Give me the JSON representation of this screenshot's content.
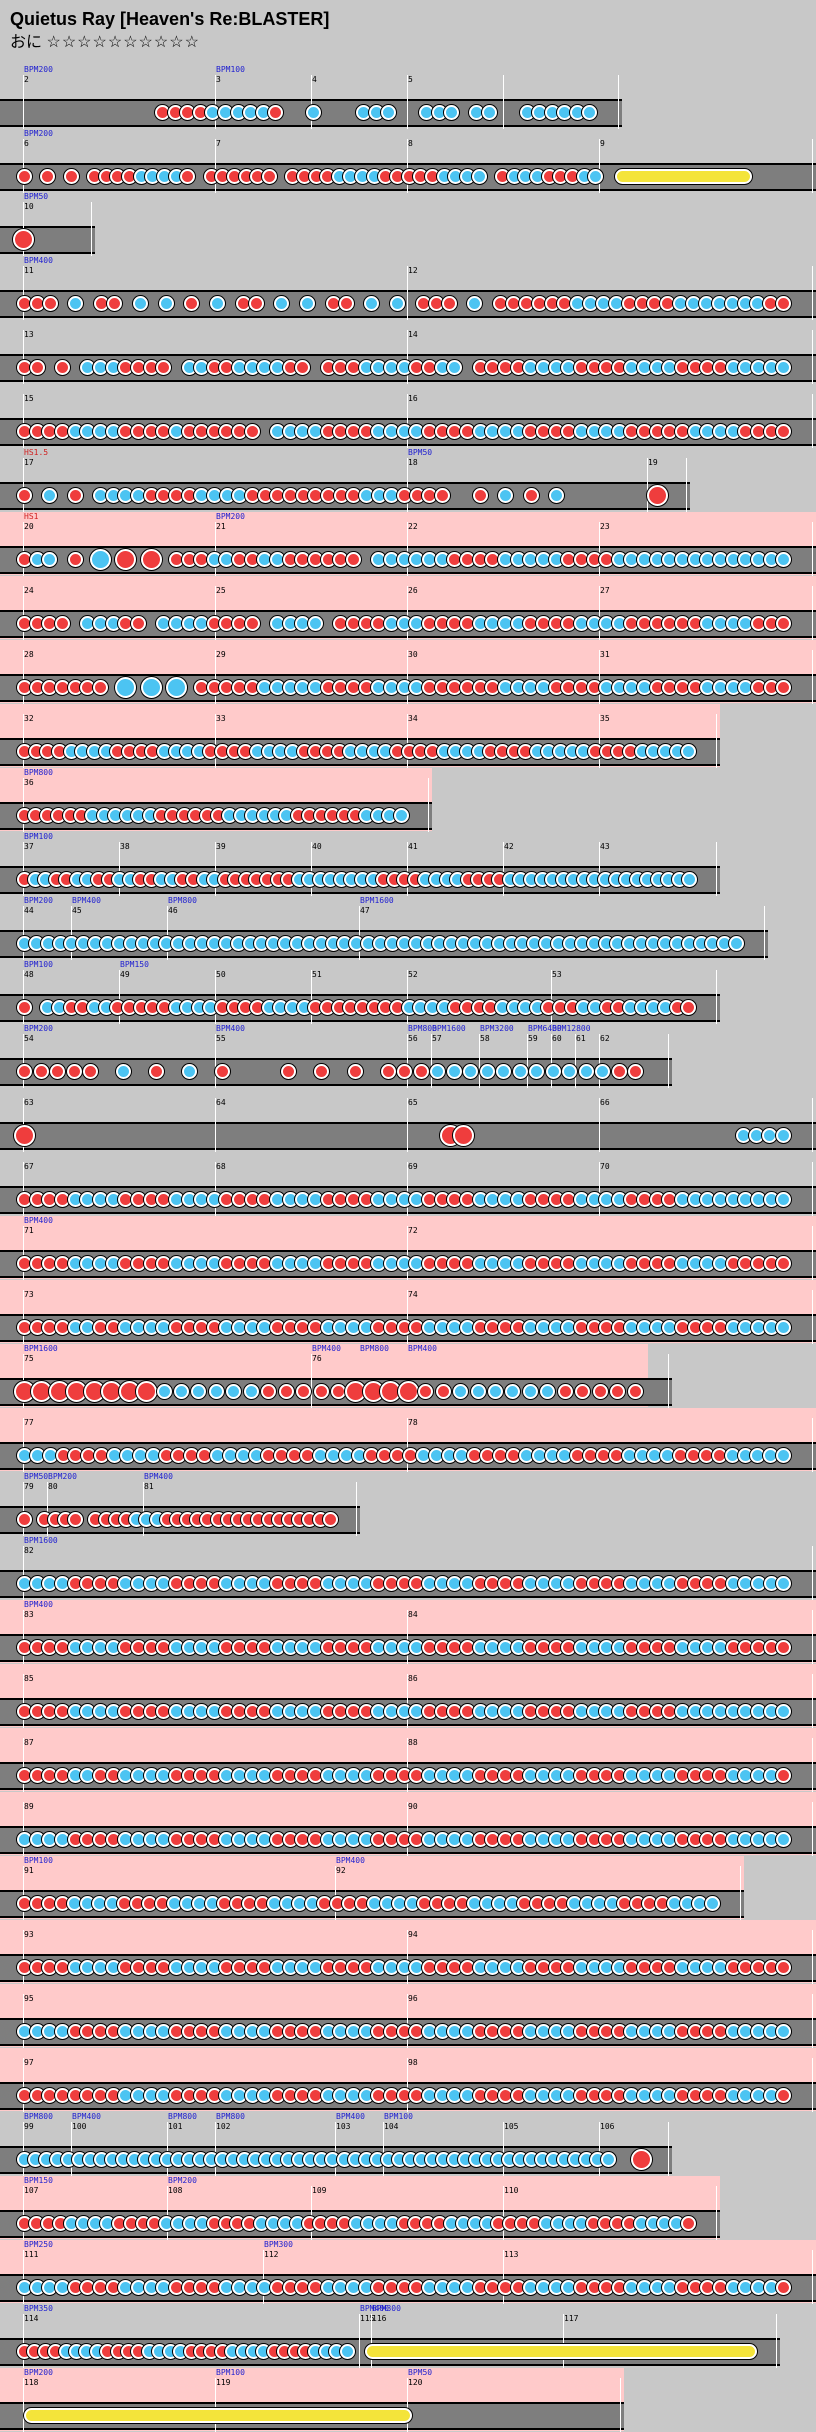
{
  "song": {
    "title": "Quietus Ray [Heaven's Re:BLASTER]",
    "course": "おに",
    "stars": "☆☆☆☆☆☆☆☆☆☆"
  },
  "colors": {
    "background": "#c8c8c8",
    "lane": "#7e7e7e",
    "gogo": "#ffcaca",
    "don": "#ef3d3d",
    "ka": "#4cc4f2",
    "roll": "#f4e43a",
    "bpm_text": "#2020d0"
  },
  "rows": [
    {
      "bars": [
        "2",
        "3",
        "4",
        "5"
      ],
      "bpm": [
        "BPM200",
        "BPM100"
      ],
      "notes": "-----------rrrrbbbbbr--b---bbb--bbb-bb--bbbbbb"
    },
    {
      "bars": [
        "6",
        "7",
        "8",
        "9"
      ],
      "bpm": [
        "BPM200"
      ],
      "notes": "r-r-r-rrrrbbbbr-rrrrrr-rrrrbbbbrrrrrbbbb-rbbbrrrbb",
      "roll": true
    },
    {
      "bars": [
        "10"
      ],
      "bpm": [
        "BPM50"
      ],
      "notes": "R"
    },
    {
      "bars": [
        "11",
        "12"
      ],
      "bpm": [
        "BPM400"
      ],
      "notes": "rrr-b-rr-b-b-r-b-rr-b-b-rr-b-b-rrr-b-rrrrrrbbbbrrrrbbbbbbbrr"
    },
    {
      "bars": [
        "13",
        "14"
      ],
      "bpm": [],
      "notes": "rr-r-bbbrrrr-bbrrbbbbrr-rrrbbbbrrbb-rrrrbbbbrrrrbbbbrrrrbbbbb"
    },
    {
      "bars": [
        "15",
        "16"
      ],
      "bpm": [],
      "notes": "rrrrbbbbrrrrbrrrrrr-bbbbrrrrbbbbrrrrbbbbrrrrbbbbrrrrrbbbbrrrr"
    },
    {
      "bars": [
        "17",
        "18",
        "19"
      ],
      "bpm": [
        "HS1.5",
        "BPM50"
      ],
      "notes": "r-b-r-bbbbrrrrbbbbrrrrrrrrrbbbrrrr--r-b-r-b-------R"
    },
    {
      "bars": [
        "20",
        "21",
        "22",
        "23"
      ],
      "bpm": [
        "HS1",
        "BPM200"
      ],
      "notes": "rbb-r-B-R-R-rrrbbrrbbrrrrrr-bbbbbbrrrrbbbbbrrrrbbbbbbbbbbbbbb"
    },
    {
      "bars": [
        "24",
        "25",
        "26",
        "27"
      ],
      "bpm": [],
      "notes": "rrrr-bbbrr-bbbbrrrr-bbbb-rrrrbbbrrrrbbbbrrrrbbbbrrrrrrbbbbrrr"
    },
    {
      "bars": [
        "28",
        "29",
        "30",
        "31"
      ],
      "bpm": [],
      "notes": "rrrrrrr-B-B-B-rrrrrbbbbbrrrrbbbbrrrrrrbbbbrrrrbbbbrrrrbbbbrrr"
    },
    {
      "bars": [
        "32",
        "33",
        "34",
        "35"
      ],
      "bpm": [],
      "notes": "rrrrbbbbrrrrbbbbrrrrbbbbrrrrbbbbrrrrbbbbrrrrbbbbbrrrrbbbbb"
    },
    {
      "bars": [
        "36"
      ],
      "bpm": [
        "BPM800"
      ],
      "notes": "rrrrrrbbbbbbrrrrrrbbbbbbrrrrrrbbbb"
    },
    {
      "bars": [
        "37",
        "38",
        "39",
        "40",
        "41",
        "42",
        "43"
      ],
      "bpm": [
        "BPM100"
      ],
      "notes": "rbbrrbbrrbbrrbbrrbbrrrrrrrbbbbbbbbrrrrbbbbrrrrbbbbbbbbbbbbbbbbbb"
    },
    {
      "bars": [
        "44",
        "45",
        "46",
        "47"
      ],
      "bpm": [
        "BPM200",
        "BPM400",
        "BPM800",
        "BPM1600"
      ],
      "notes": "bbbbbbbbbbbbbbbbbbbbbbbbbbbbbbbbbbbbbbbbbbbbbbbbbbbbbbbbbbbbb"
    },
    {
      "bars": [
        "48",
        "49",
        "50",
        "51",
        "52",
        "53"
      ],
      "bpm": [
        "BPM100",
        "BPM150"
      ],
      "notes": "r-bbrrbbrrrrrbbbbrrrrbbbbrrrrrrrrbbbbrrrrbbbbrrrbbrrbbbbrr"
    },
    {
      "bars": [
        "54",
        "55",
        "56",
        "57",
        "58",
        "59",
        "60",
        "61",
        "62"
      ],
      "bpm": [
        "BPM200",
        "BPM400",
        "BPM800",
        "BPM1600",
        "BPM3200",
        "BPM6400",
        "BPM12800"
      ],
      "notes": "rrrrr-b-r-b-r---r-r-r-rrrbbbbbbbbbbbrr"
    },
    {
      "bars": [
        "63",
        "64",
        "65",
        "66"
      ],
      "bpm": [],
      "notes": "R-------------------------------RR--------------------bbbb"
    },
    {
      "bars": [
        "67",
        "68",
        "69",
        "70"
      ],
      "bpm": [],
      "notes": "rrrrbbbbrrrrbbbbrrrrbbbbrrrrbbbbrrrrbbbbrrrrbbbbrrrrbbbbbbbbb"
    },
    {
      "bars": [
        "71",
        "72"
      ],
      "bpm": [
        "BPM400"
      ],
      "notes": "rrrrbbbbrrrrbbbbrrrrbbbbrrrrbbbbrrrrbbbbrrrrbbbbrrrrbbbbrrrrr"
    },
    {
      "bars": [
        "73",
        "74"
      ],
      "bpm": [],
      "notes": "rrrrbbrrbbbbrrrrbbbbrrrrbbbbrrrrbbbbrrrrbbbbrrrrbbbbrrrrbbbbb"
    },
    {
      "bars": [
        "75",
        "76"
      ],
      "bpm": [
        "BPM1600",
        "BPM400",
        "BPM800",
        "BPM400"
      ],
      "notes": "RRRRRRRRbbbbbbrrrrrRRRRrrbbbbbbrrrrr"
    },
    {
      "bars": [
        "77",
        "78"
      ],
      "bpm": [],
      "notes": "bbbrrrrbbbbrrrrbbbbrrrrbbbbrrrrbbbbrrrrbbbbrrrrbbbbrrrrbbbbb"
    },
    {
      "bars": [
        "79",
        "80",
        "81"
      ],
      "bpm": [
        "BPM50",
        "BPM200",
        "BPM400"
      ],
      "notes": "r-rrrr-rrrrbbbrrrrrrrrrrrrrrrrr"
    },
    {
      "bars": [
        "82"
      ],
      "bpm": [
        "BPM1600"
      ],
      "notes": "bbbbrrrrbbbbrrrrbbbbrrrrbbbbrrrrbbbbrrrrbbbbrrrrbbbbrrrrbbbbb"
    },
    {
      "bars": [
        "83",
        "84"
      ],
      "bpm": [
        "BPM400"
      ],
      "notes": "rrrrbbbbrrrrbbbbrrrrbbbbrrrrbbbbrrrrbbbbrrrrbbbbrrrrbbbbrrrrr"
    },
    {
      "bars": [
        "85",
        "86"
      ],
      "bpm": [],
      "notes": "rrrrbbbbrrrrbbbbrrrrbbbbrrrrbbbbrrrrbbbbrrrrbbbbrrrrbbbbbbbbb"
    },
    {
      "bars": [
        "87",
        "88"
      ],
      "bpm": [],
      "notes": "rrrrbbrrbbbbrrrrbbbbrrrrbbbbrrrrbbbbrrrrbbbbrrrrbbbbrrrrbbbbr"
    },
    {
      "bars": [
        "89",
        "90"
      ],
      "bpm": [],
      "notes": "bbbbrrrrbbbbrrrrbbbbrrrrbbbbrrrrbbbbrrrrbbbbrrrrbbbbrrrrbbbbb"
    },
    {
      "bars": [
        "91",
        "92"
      ],
      "bpm": [
        "BPM100",
        "BPM400"
      ],
      "notes": "rrrrbbbbrrrrbbbbrrrrbbbbrrrrbbbbrrrrbbbbrrrrbbbbrrrrbbbb"
    },
    {
      "bars": [
        "93",
        "94"
      ],
      "bpm": [],
      "notes": "rrrrbbbbrrrrbbbbrrrrbbbbrrrrbbbbrrrrbbbbrrrrbbbbrrrrbbbbrrrrr"
    },
    {
      "bars": [
        "95",
        "96"
      ],
      "bpm": [],
      "notes": "bbbbrrrrbbbbrrrrbbbbrrrrbbbbrrrrbbbbrrrrbbbbrrrrbbbbrrrrbbbbb"
    },
    {
      "bars": [
        "97",
        "98"
      ],
      "bpm": [],
      "notes": "rrrrrrrrbbbbrrrrbbbbrrrrbbbbrrrrbbbbrrrrbbbbrrrrbbbbrrrrbbbbr"
    },
    {
      "bars": [
        "99",
        "100",
        "101",
        "102",
        "103",
        "104",
        "105",
        "106"
      ],
      "bpm": [
        "BPM800",
        "BPM400",
        "BPM800",
        "BPM800",
        "BPM400",
        "BPM100"
      ],
      "notes": "bbbbbbbbbbbbbbbbbbbbbbbbbbbbbbbbbbbbbbbbbbbbbbbbbbbbbb--R"
    },
    {
      "bars": [
        "107",
        "108",
        "109",
        "110"
      ],
      "bpm": [
        "BPM150",
        "BPM200"
      ],
      "notes": "rrrrbbbbrrrrbbbbrrrrbbbbrrrrbbbbrrrrbbbbrrrrbbbbrrrrbbbbr"
    },
    {
      "bars": [
        "111",
        "112",
        "113"
      ],
      "bpm": [
        "BPM250",
        "BPM300"
      ],
      "notes": "bbbbrrrrbbbbrrrrbbbbrrrrbbbbrrrrbbbbrrrrbbbbrrrrbbbbrrrrbbbbr"
    },
    {
      "bars": [
        "114",
        "115",
        "116",
        "117"
      ],
      "bpm": [
        "BPM350",
        "BPM400",
        "BPM300"
      ],
      "notes": "rrrrbbbbrrrrbbbbrrrrbbbbrrrrbbbb",
      "roll": true
    },
    {
      "bars": [
        "118",
        "119",
        "120"
      ],
      "bpm": [
        "BPM200",
        "BPM100",
        "BPM50"
      ],
      "notes": "",
      "roll": true
    }
  ]
}
